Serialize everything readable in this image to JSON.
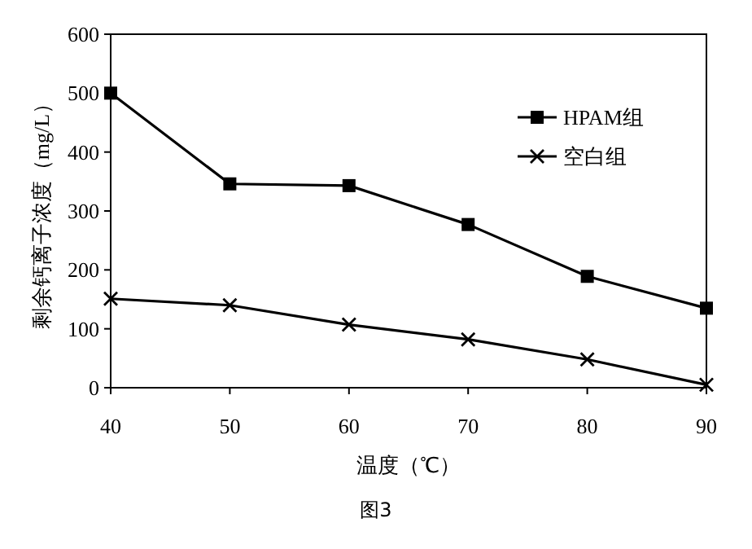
{
  "chart_data": {
    "type": "line",
    "xlabel": "温度（℃）",
    "ylabel": "剩余钙离子浓度（mg/L）",
    "x": [
      40,
      50,
      60,
      70,
      80,
      90
    ],
    "xlim": [
      40,
      90
    ],
    "xticks": [
      40,
      50,
      60,
      70,
      80,
      90
    ],
    "ylim": [
      0,
      600
    ],
    "yticks": [
      0,
      100,
      200,
      300,
      400,
      500,
      600
    ],
    "grid": false,
    "legend": "right",
    "line_style": "solid",
    "series": [
      {
        "name": "HPAM组",
        "color": "#000000",
        "marker": "square",
        "values": [
          500,
          346,
          343,
          277,
          189,
          135
        ]
      },
      {
        "name": "空白组",
        "color": "#000000",
        "marker": "cross",
        "values": [
          151,
          140,
          107,
          82,
          48,
          5
        ]
      }
    ],
    "annotations": [
      "图3"
    ]
  }
}
